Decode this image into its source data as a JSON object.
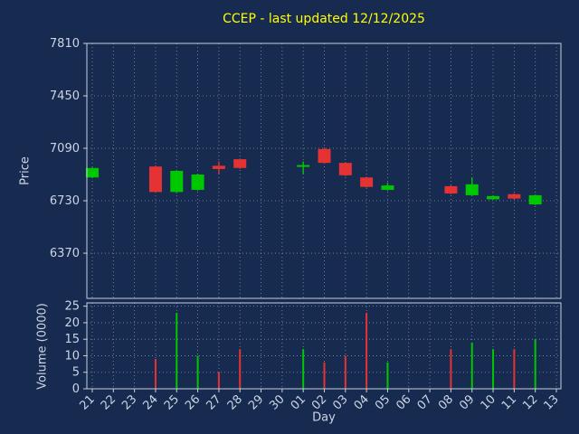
{
  "title": "CCEP - last updated 12/12/2025",
  "colors": {
    "background": "#172a4f",
    "title": "#ffff00",
    "text": "#ccd5e5",
    "grid": "#aab4c8",
    "spine": "#c8d0dd",
    "up": "#00c800",
    "down": "#e53333"
  },
  "chart_data": {
    "type": "candlestick",
    "title": "CCEP - last updated 12/12/2025",
    "xlabel": "Day",
    "price_ylabel": "Price",
    "volume_ylabel": "Volume (0000)",
    "legend": "none",
    "grid": "dotted",
    "x_ticklabels": [
      "21",
      "22",
      "23",
      "24",
      "25",
      "26",
      "27",
      "28",
      "29",
      "30",
      "01",
      "02",
      "03",
      "04",
      "05",
      "06",
      "07",
      "08",
      "09",
      "10",
      "11",
      "12",
      "13"
    ],
    "price_ticks": [
      6370,
      6730,
      7090,
      7450,
      7810
    ],
    "price_ylim": [
      6060,
      7810
    ],
    "volume_ticks": [
      0,
      5,
      10,
      15,
      20,
      25
    ],
    "volume_ylim": [
      0,
      26
    ],
    "candles": [
      {
        "day": "21",
        "open": 6890,
        "high": 6958,
        "low": 6885,
        "close": 6955,
        "volume": 0
      },
      {
        "day": "24",
        "open": 6965,
        "high": 6972,
        "low": 6785,
        "close": 6790,
        "volume": 9
      },
      {
        "day": "25",
        "open": 6790,
        "high": 6940,
        "low": 6783,
        "close": 6935,
        "volume": 23
      },
      {
        "day": "26",
        "open": 6805,
        "high": 6915,
        "low": 6800,
        "close": 6910,
        "volume": 10
      },
      {
        "day": "27",
        "open": 6970,
        "high": 7000,
        "low": 6916,
        "close": 6948,
        "volume": 5
      },
      {
        "day": "28",
        "open": 7015,
        "high": 7020,
        "low": 6950,
        "close": 6955,
        "volume": 12
      },
      {
        "day": "01",
        "open": 6968,
        "high": 7000,
        "low": 6915,
        "close": 6975,
        "volume": 12
      },
      {
        "day": "02",
        "open": 7085,
        "high": 7095,
        "low": 6985,
        "close": 6990,
        "volume": 8
      },
      {
        "day": "03",
        "open": 6990,
        "high": 6995,
        "low": 6900,
        "close": 6905,
        "volume": 10
      },
      {
        "day": "04",
        "open": 6890,
        "high": 6895,
        "low": 6820,
        "close": 6825,
        "volume": 23
      },
      {
        "day": "05",
        "open": 6805,
        "high": 6855,
        "low": 6800,
        "close": 6835,
        "volume": 8
      },
      {
        "day": "08",
        "open": 6830,
        "high": 6835,
        "low": 6775,
        "close": 6780,
        "volume": 12
      },
      {
        "day": "09",
        "open": 6768,
        "high": 6890,
        "low": 6763,
        "close": 6843,
        "volume": 14
      },
      {
        "day": "10",
        "open": 6740,
        "high": 6766,
        "low": 6736,
        "close": 6762,
        "volume": 12
      },
      {
        "day": "11",
        "open": 6775,
        "high": 6780,
        "low": 6740,
        "close": 6745,
        "volume": 12
      },
      {
        "day": "12",
        "open": 6705,
        "high": 6772,
        "low": 6700,
        "close": 6768,
        "volume": 15
      }
    ]
  }
}
